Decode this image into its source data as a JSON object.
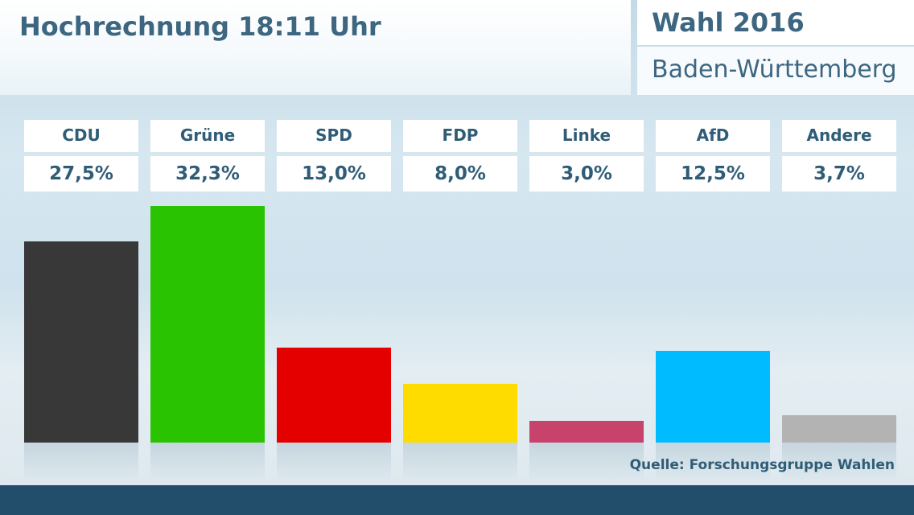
{
  "header": {
    "title": "Hochrechnung 18:11 Uhr",
    "election": "Wahl 2016",
    "region": "Baden-Württemberg"
  },
  "source": "Quelle: Forschungsgruppe Wahlen",
  "chart_data": {
    "type": "bar",
    "title": "Hochrechnung 18:11 Uhr",
    "subtitle": "Wahl 2016 – Baden-Württemberg",
    "categories": [
      "CDU",
      "Grüne",
      "SPD",
      "FDP",
      "Linke",
      "AfD",
      "Andere"
    ],
    "values": [
      27.5,
      32.3,
      13.0,
      8.0,
      3.0,
      12.5,
      3.7
    ],
    "value_labels": [
      "27,5%",
      "32,3%",
      "13,0%",
      "8,0%",
      "3,0%",
      "12,5%",
      "3,7%"
    ],
    "colors": [
      "#383838",
      "#2ac301",
      "#e50000",
      "#ffdc00",
      "#c8436b",
      "#00bbff",
      "#b3b3b3"
    ],
    "ylim": [
      0,
      32.3
    ],
    "unit": "%",
    "xlabel": "",
    "ylabel": ""
  }
}
